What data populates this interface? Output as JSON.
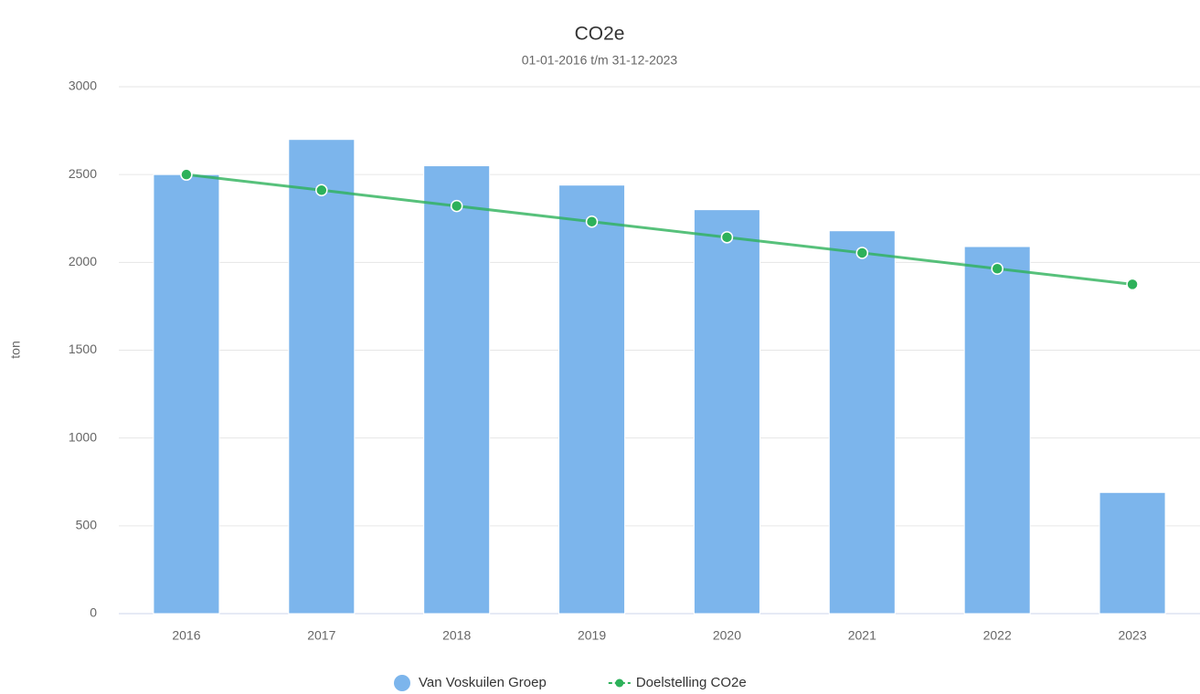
{
  "chart_data": {
    "type": "bar",
    "title": "CO2e",
    "subtitle": "01-01-2016 t/m 31-12-2023",
    "y_label": "ton",
    "categories": [
      "2016",
      "2017",
      "2018",
      "2019",
      "2020",
      "2021",
      "2022",
      "2023"
    ],
    "series": [
      {
        "name": "Van Voskuilen Groep",
        "type": "bar",
        "color": "#7cb5ec",
        "values": [
          2500,
          2700,
          2550,
          2440,
          2300,
          2180,
          2090,
          690
        ]
      },
      {
        "name": "Doelstelling CO2e",
        "type": "line",
        "color": "#2db15a",
        "values": [
          2500,
          2411,
          2321,
          2232,
          2143,
          2054,
          1964,
          1875
        ]
      }
    ],
    "ylim": [
      0,
      3000
    ],
    "yticks": [
      0,
      500,
      1000,
      1500,
      2000,
      2500,
      3000
    ],
    "grid": true,
    "legend": "bottom"
  }
}
